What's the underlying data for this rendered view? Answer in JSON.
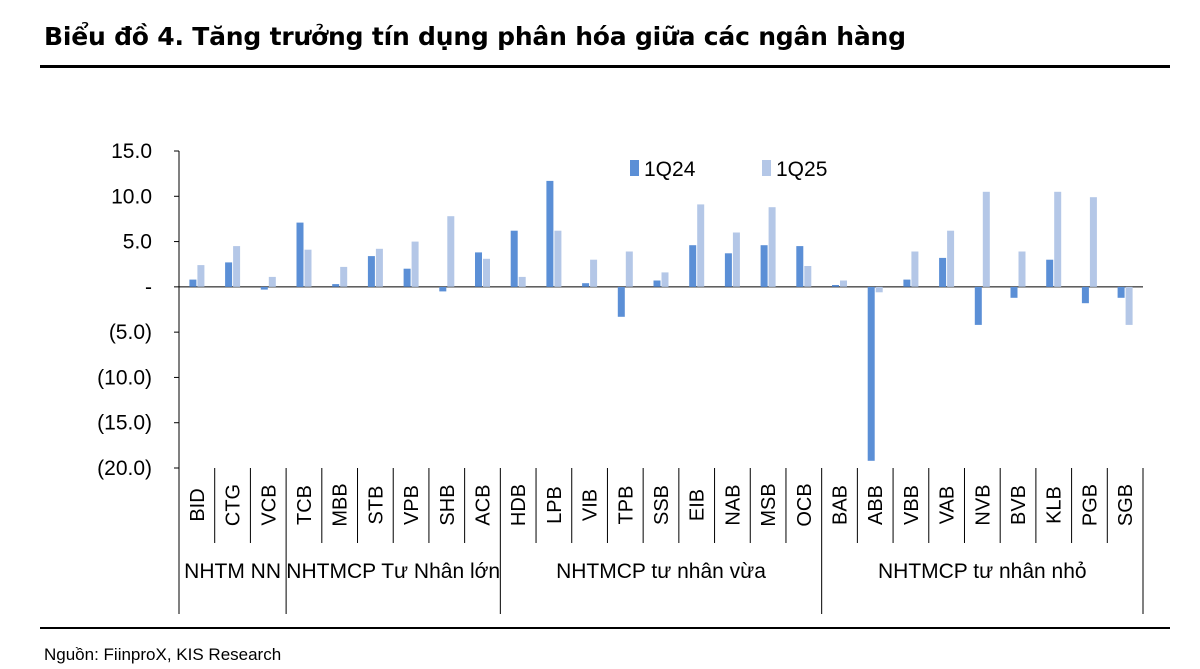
{
  "title": "Biểu đồ 4. Tăng trưởng tín dụng phân hóa giữa các ngân hàng",
  "source": "Nguồn: FiinproX, KIS Research",
  "colors": {
    "series1": "#5b8fd6",
    "series2": "#b4c7e7",
    "axis": "#000000"
  },
  "chart_data": {
    "type": "bar",
    "categories": [
      "BID",
      "CTG",
      "VCB",
      "TCB",
      "MBB",
      "STB",
      "VPB",
      "SHB",
      "ACB",
      "HDB",
      "LPB",
      "VIB",
      "TPB",
      "SSB",
      "EIB",
      "NAB",
      "MSB",
      "OCB",
      "BAB",
      "ABB",
      "VBB",
      "VAB",
      "NVB",
      "BVB",
      "KLB",
      "PGB",
      "SGB"
    ],
    "groups": [
      {
        "label": "NHTM NN",
        "count": 3
      },
      {
        "label": "NHTMCP Tư Nhân lớn",
        "count": 6
      },
      {
        "label": "NHTMCP tư nhân vừa",
        "count": 9
      },
      {
        "label": "NHTMCP tư nhân nhỏ",
        "count": 9
      }
    ],
    "series": [
      {
        "name": "1Q24",
        "values": [
          0.8,
          2.7,
          -0.3,
          7.1,
          0.3,
          3.4,
          2.0,
          -0.5,
          3.8,
          6.2,
          11.7,
          0.4,
          -3.3,
          0.7,
          4.6,
          3.7,
          4.6,
          4.5,
          0.2,
          -19.2,
          0.8,
          3.2,
          -4.2,
          -1.2,
          3.0,
          -1.8,
          -1.2
        ]
      },
      {
        "name": "1Q25",
        "values": [
          2.4,
          4.5,
          1.1,
          4.1,
          2.2,
          4.2,
          5.0,
          7.8,
          3.1,
          1.1,
          6.2,
          3.0,
          3.9,
          1.6,
          9.1,
          6.0,
          8.8,
          2.3,
          0.7,
          -0.6,
          3.9,
          6.2,
          10.5,
          3.9,
          10.5,
          9.9,
          -4.2
        ]
      }
    ],
    "yticks": [
      "15.0",
      "10.0",
      "5.0",
      "-",
      "(5.0)",
      "(10.0)",
      "(15.0)",
      "(20.0)"
    ],
    "ytick_values": [
      15,
      10,
      5,
      0,
      -5,
      -10,
      -15,
      -20
    ],
    "ylim": [
      -20,
      15
    ],
    "legend_position": "top-right",
    "grid": false
  }
}
